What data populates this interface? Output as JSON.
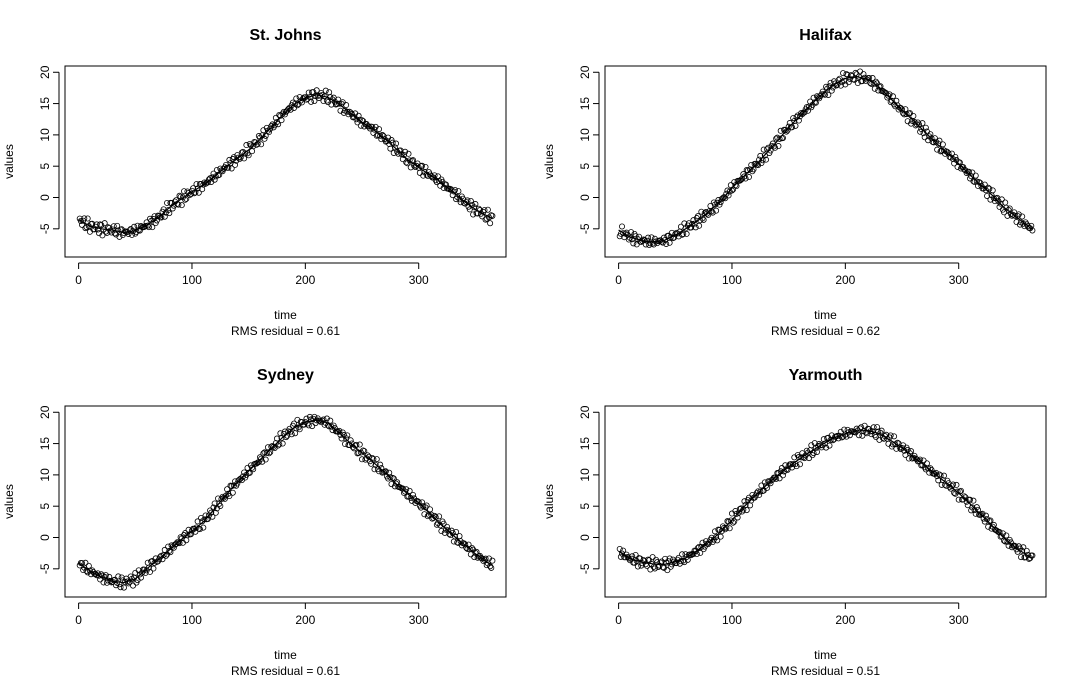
{
  "figure": {
    "watermark": "https://blog.csdn.net/baidu_18548009"
  },
  "chart_data": [
    {
      "type": "scatter",
      "title": "St. Johns",
      "xlabel": "time",
      "subtitle": "RMS residual = 0.61",
      "ylabel": "values",
      "xlim": [
        -12,
        377
      ],
      "ylim": [
        -9.5,
        21
      ],
      "xticks": [
        0,
        100,
        200,
        300
      ],
      "yticks": [
        -5,
        0,
        5,
        10,
        15,
        20
      ],
      "fit_curve": {
        "day": [
          0,
          10,
          20,
          30,
          40,
          50,
          60,
          70,
          80,
          90,
          100,
          110,
          120,
          130,
          140,
          150,
          160,
          170,
          180,
          190,
          200,
          210,
          220,
          230,
          240,
          250,
          260,
          270,
          280,
          290,
          300,
          310,
          320,
          330,
          340,
          350,
          360,
          365
        ],
        "value": [
          -3.5,
          -4.6,
          -5.0,
          -5.2,
          -5.6,
          -5.3,
          -4.4,
          -3.3,
          -1.6,
          -0.3,
          0.9,
          2.0,
          3.4,
          4.9,
          6.2,
          7.6,
          9.3,
          11.2,
          13.2,
          14.9,
          15.9,
          16.4,
          16.0,
          14.9,
          13.4,
          12.0,
          10.9,
          9.4,
          7.8,
          6.1,
          4.8,
          3.6,
          2.4,
          0.9,
          -0.6,
          -1.9,
          -2.9,
          -3.4
        ]
      }
    },
    {
      "type": "scatter",
      "title": "Halifax",
      "xlabel": "time",
      "subtitle": "RMS residual = 0.62",
      "ylabel": "values",
      "xlim": [
        -12,
        377
      ],
      "ylim": [
        -9.5,
        21
      ],
      "xticks": [
        0,
        100,
        200,
        300
      ],
      "yticks": [
        -5,
        0,
        5,
        10,
        15,
        20
      ],
      "fit_curve": {
        "day": [
          0,
          10,
          20,
          30,
          40,
          50,
          60,
          70,
          80,
          90,
          100,
          110,
          120,
          130,
          140,
          150,
          160,
          170,
          180,
          190,
          200,
          210,
          220,
          230,
          240,
          250,
          260,
          270,
          280,
          290,
          300,
          310,
          320,
          330,
          340,
          350,
          360,
          365
        ],
        "value": [
          -5.2,
          -6.3,
          -6.9,
          -7.1,
          -6.9,
          -6.0,
          -4.9,
          -3.7,
          -2.2,
          -0.6,
          1.5,
          3.3,
          5.0,
          7.0,
          9.0,
          11.2,
          13.0,
          14.9,
          16.6,
          18.0,
          19.0,
          19.3,
          18.9,
          17.6,
          15.8,
          13.9,
          12.3,
          10.5,
          8.7,
          7.1,
          5.4,
          3.6,
          1.9,
          0.3,
          -1.6,
          -3.0,
          -4.4,
          -5.1
        ]
      }
    },
    {
      "type": "scatter",
      "title": "Sydney",
      "xlabel": "time",
      "subtitle": "RMS residual = 0.61",
      "ylabel": "values",
      "xlim": [
        -12,
        377
      ],
      "ylim": [
        -9.5,
        21
      ],
      "xticks": [
        0,
        100,
        200,
        300
      ],
      "yticks": [
        -5,
        0,
        5,
        10,
        15,
        20
      ],
      "fit_curve": {
        "day": [
          0,
          10,
          20,
          30,
          40,
          50,
          60,
          70,
          80,
          90,
          100,
          110,
          120,
          130,
          140,
          150,
          160,
          170,
          180,
          190,
          200,
          210,
          220,
          230,
          240,
          250,
          260,
          270,
          280,
          290,
          300,
          310,
          320,
          330,
          340,
          350,
          360,
          365
        ],
        "value": [
          -4.1,
          -5.3,
          -6.3,
          -7.0,
          -7.2,
          -6.6,
          -5.0,
          -3.6,
          -2.0,
          -0.4,
          1.0,
          2.5,
          4.6,
          6.8,
          8.8,
          10.6,
          12.4,
          14.2,
          16.0,
          17.5,
          18.4,
          18.8,
          18.3,
          16.7,
          15.0,
          13.5,
          12.0,
          10.4,
          8.6,
          7.0,
          5.5,
          3.8,
          2.0,
          0.4,
          -1.1,
          -2.6,
          -3.9,
          -4.4
        ]
      }
    },
    {
      "type": "scatter",
      "title": "Yarmouth",
      "xlabel": "time",
      "subtitle": "RMS residual = 0.51",
      "ylabel": "values",
      "xlim": [
        -12,
        377
      ],
      "ylim": [
        -9.5,
        21
      ],
      "xticks": [
        0,
        100,
        200,
        300
      ],
      "yticks": [
        -5,
        0,
        5,
        10,
        15,
        20
      ],
      "fit_curve": {
        "day": [
          0,
          10,
          20,
          30,
          40,
          50,
          60,
          70,
          80,
          90,
          100,
          110,
          120,
          130,
          140,
          150,
          160,
          170,
          180,
          190,
          200,
          210,
          220,
          230,
          240,
          250,
          260,
          270,
          280,
          290,
          300,
          310,
          320,
          330,
          340,
          350,
          360,
          365
        ],
        "value": [
          -2.2,
          -3.4,
          -3.9,
          -4.2,
          -4.3,
          -3.9,
          -3.2,
          -2.0,
          -0.7,
          0.9,
          2.8,
          4.8,
          6.6,
          8.3,
          9.9,
          11.3,
          12.6,
          13.8,
          14.9,
          15.9,
          16.6,
          17.0,
          17.1,
          16.6,
          15.5,
          14.3,
          12.9,
          11.5,
          10.0,
          8.6,
          7.1,
          5.4,
          3.6,
          1.8,
          -0.1,
          -1.6,
          -2.8,
          -3.3
        ]
      }
    }
  ]
}
